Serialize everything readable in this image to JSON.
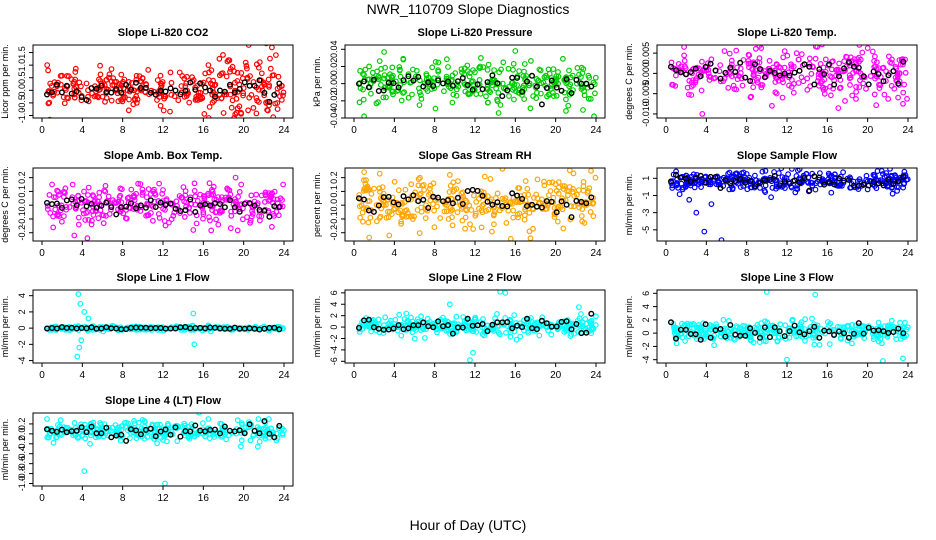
{
  "title": "NWR_110709  Slope Diagnostics",
  "x_axis_label": "Hour of Day (UTC)",
  "chart_data": [
    {
      "type": "scatter",
      "title": "Slope Li-820 CO2",
      "ylabel": "Licor ppm per min.",
      "color": "#ff0000",
      "xlim": [
        0,
        24
      ],
      "xticks": [
        0,
        4,
        8,
        12,
        16,
        20,
        24
      ],
      "ylim": [
        -1.1,
        1.8
      ],
      "yticks": [
        -1.0,
        -0.5,
        0.0,
        0.5,
        1.0,
        1.5
      ],
      "yticklabels": [
        "-1.0",
        "-0.5",
        "0.0",
        "0.5",
        "1.0",
        "1.5"
      ],
      "center": 0.05,
      "spread": 0.35,
      "black_spread": 0.15,
      "outliers": [
        [
          18.5,
          1.2
        ],
        [
          20.2,
          1.1
        ],
        [
          21.5,
          0.9
        ],
        [
          22.8,
          1.7
        ],
        [
          23.2,
          1.4
        ],
        [
          19.3,
          -0.9
        ],
        [
          22.4,
          -0.8
        ],
        [
          16.8,
          0.8
        ]
      ]
    },
    {
      "type": "scatter",
      "title": "Slope Li-820 Pressure",
      "ylabel": "kPa per min.",
      "color": "#00cc00",
      "xlim": [
        0,
        24
      ],
      "xticks": [
        0,
        4,
        8,
        12,
        16,
        20,
        24
      ],
      "ylim": [
        -0.04,
        0.045
      ],
      "yticks": [
        -0.04,
        -0.02,
        0.0,
        0.02,
        0.04
      ],
      "yticklabels": [
        "-0.04",
        "-0.02",
        "0.00",
        "0.02",
        "0.04"
      ],
      "center": 0.0,
      "spread": 0.012,
      "black_spread": 0.006,
      "outliers": [
        [
          1.0,
          -0.038
        ],
        [
          16.0,
          0.038
        ],
        [
          23.8,
          -0.038
        ],
        [
          12.5,
          0.02
        ],
        [
          6.5,
          -0.025
        ]
      ]
    },
    {
      "type": "scatter",
      "title": "Slope Li-820 Temp.",
      "ylabel": "degrees C per min.",
      "color": "#ff00ff",
      "xlim": [
        0,
        24
      ],
      "xticks": [
        0,
        4,
        8,
        12,
        16,
        20,
        24
      ],
      "ylim": [
        -0.011,
        0.007
      ],
      "yticks": [
        -0.01,
        -0.005,
        0.0,
        0.005
      ],
      "yticklabels": [
        "-0.010",
        "-0.005",
        "0.000",
        "0.005"
      ],
      "center": 0.0,
      "spread": 0.003,
      "black_spread": 0.0015,
      "outliers": [
        [
          1.8,
          0.0065
        ],
        [
          5.8,
          0.0055
        ],
        [
          3.6,
          -0.01
        ],
        [
          10.5,
          -0.008
        ],
        [
          23.5,
          -0.0075
        ]
      ]
    },
    {
      "type": "scatter",
      "title": "Slope Amb. Box Temp.",
      "ylabel": "degrees C per min.",
      "color": "#ff00ff",
      "xlim": [
        0,
        24
      ],
      "xticks": [
        0,
        4,
        8,
        12,
        16,
        20,
        24
      ],
      "ylim": [
        -0.26,
        0.27
      ],
      "yticks": [
        -0.2,
        -0.1,
        0.0,
        0.1,
        0.2
      ],
      "yticklabels": [
        "-0.2",
        "-0.1",
        "0.0",
        "0.1",
        "0.2"
      ],
      "center": 0.0,
      "spread": 0.07,
      "black_spread": 0.03,
      "outliers": [
        [
          4.5,
          -0.24
        ],
        [
          3.2,
          -0.22
        ],
        [
          19.2,
          0.2
        ],
        [
          15.0,
          -0.18
        ],
        [
          1.0,
          0.15
        ]
      ]
    },
    {
      "type": "scatter",
      "title": "Slope Gas Stream RH",
      "ylabel": "percent per min.",
      "color": "#ffa500",
      "xlim": [
        0,
        24
      ],
      "xticks": [
        0,
        4,
        8,
        12,
        16,
        20,
        24
      ],
      "ylim": [
        -0.26,
        0.27
      ],
      "yticks": [
        -0.2,
        -0.1,
        0.0,
        0.1,
        0.2
      ],
      "yticklabels": [
        "-0.2",
        "-0.1",
        "0.0",
        "0.1",
        "0.2"
      ],
      "center": 0.02,
      "spread": 0.09,
      "black_spread": 0.05,
      "outliers": [
        [
          1.0,
          0.24
        ],
        [
          23.5,
          0.25
        ],
        [
          3.5,
          -0.22
        ],
        [
          17.5,
          -0.24
        ],
        [
          9.5,
          0.22
        ]
      ]
    },
    {
      "type": "scatter",
      "title": "Slope Sample Flow",
      "ylabel": "ml/min per min.",
      "color": "#0000ff",
      "xlim": [
        0,
        24
      ],
      "xticks": [
        0,
        4,
        8,
        12,
        16,
        20,
        24
      ],
      "ylim": [
        -6.3,
        2.2
      ],
      "yticks": [
        -5,
        -3,
        -1,
        1
      ],
      "yticklabels": [
        "-5",
        "-3",
        "-1",
        "1"
      ],
      "center": 0.6,
      "spread": 0.6,
      "black_spread": 0.4,
      "outliers": [
        [
          1.0,
          1.8
        ],
        [
          3.0,
          -3.0
        ],
        [
          3.8,
          -5.2
        ],
        [
          5.5,
          -6.2
        ],
        [
          4.5,
          -2.0
        ],
        [
          2.3,
          -1.5
        ]
      ]
    },
    {
      "type": "scatter",
      "title": "Slope Line 1 Flow",
      "ylabel": "ml/min per min.",
      "color": "#00ffff",
      "xlim": [
        0,
        24
      ],
      "xticks": [
        0,
        4,
        8,
        12,
        16,
        20,
        24
      ],
      "ylim": [
        -4.3,
        4.7
      ],
      "yticks": [
        -4,
        -2,
        0,
        2,
        4
      ],
      "yticklabels": [
        "-4",
        "-2",
        "0",
        "2",
        "4"
      ],
      "center": 0.0,
      "spread": 0.12,
      "black_spread": 0.08,
      "outliers": [
        [
          3.6,
          4.2
        ],
        [
          3.8,
          3.0
        ],
        [
          3.5,
          -3.5
        ],
        [
          3.7,
          -2.4
        ],
        [
          4.2,
          2.0
        ],
        [
          4.6,
          1.2
        ],
        [
          3.9,
          -1.5
        ],
        [
          15.0,
          1.8
        ],
        [
          15.1,
          -2.0
        ]
      ]
    },
    {
      "type": "scatter",
      "title": "Slope Line 2 Flow",
      "ylabel": "ml/min per min.",
      "color": "#00ffff",
      "xlim": [
        0,
        24
      ],
      "xticks": [
        0,
        4,
        8,
        12,
        16,
        20,
        24
      ],
      "ylim": [
        -6.3,
        6.5
      ],
      "yticks": [
        -6,
        -4,
        -2,
        0,
        2,
        4,
        6
      ],
      "yticklabels": [
        "-6",
        "-4",
        "-2",
        "0",
        "2",
        "4",
        "6"
      ],
      "center": 0.2,
      "spread": 0.8,
      "black_spread": 0.6,
      "outliers": [
        [
          11.5,
          -5.8
        ],
        [
          11.8,
          -4.5
        ],
        [
          14.5,
          6.2
        ],
        [
          15.0,
          6.0
        ],
        [
          9.5,
          4.0
        ],
        [
          22.3,
          3.5
        ]
      ]
    },
    {
      "type": "scatter",
      "title": "Slope Line 3 Flow",
      "ylabel": "ml/min per min.",
      "color": "#00ffff",
      "xlim": [
        0,
        24
      ],
      "xticks": [
        0,
        4,
        8,
        12,
        16,
        20,
        24
      ],
      "ylim": [
        -4.5,
        6.5
      ],
      "yticks": [
        -4,
        -2,
        0,
        2,
        4,
        6
      ],
      "yticklabels": [
        "-4",
        "-2",
        "0",
        "2",
        "4",
        "6"
      ],
      "center": 0.2,
      "spread": 0.8,
      "black_spread": 0.6,
      "outliers": [
        [
          10.0,
          6.2
        ],
        [
          14.8,
          5.8
        ],
        [
          21.5,
          -4.2
        ],
        [
          23.5,
          -3.8
        ],
        [
          12.0,
          -4.0
        ]
      ]
    },
    {
      "type": "scatter",
      "title": "Slope Line 4 (LT) Flow",
      "ylabel": "ml/min per min.",
      "color": "#00ffff",
      "xlim": [
        0,
        24
      ],
      "xticks": [
        0,
        4,
        8,
        12,
        16,
        20,
        24
      ],
      "ylim": [
        -1.05,
        0.42
      ],
      "yticks": [
        -1.0,
        -0.8,
        -0.6,
        -0.4,
        -0.2,
        0.0,
        0.2
      ],
      "yticklabels": [
        "-1.0",
        "-0.8",
        "-0.6",
        "-0.4",
        "-0.2",
        "0.0",
        "0.2"
      ],
      "center": 0.05,
      "spread": 0.1,
      "black_spread": 0.08,
      "outliers": [
        [
          12.2,
          -1.0
        ],
        [
          4.2,
          -0.75
        ],
        [
          0.5,
          0.3
        ],
        [
          16.5,
          0.3
        ],
        [
          22.5,
          0.3
        ]
      ]
    }
  ]
}
